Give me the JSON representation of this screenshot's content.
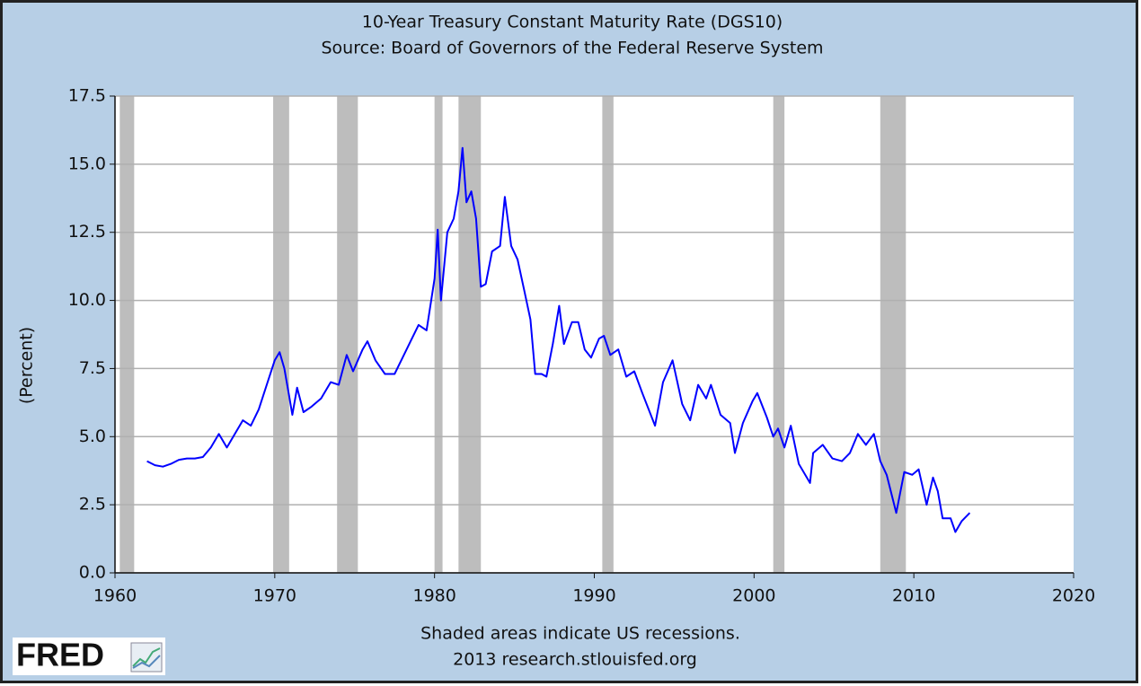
{
  "chart_data": {
    "type": "line",
    "title": "10-Year Treasury Constant Maturity Rate (DGS10)",
    "subtitle": "Source: Board of Governors of the Federal Reserve System",
    "y_label": "(Percent)",
    "note": "Shaded areas indicate US recessions.",
    "credit": "2013 research.stlouisfed.org",
    "logo": "FRED",
    "xlim": [
      1960,
      2020
    ],
    "xticks": [
      1960,
      1970,
      1980,
      1990,
      2000,
      2010,
      2020
    ],
    "ylim": [
      0,
      17.5
    ],
    "yticks": [
      {
        "value": 0,
        "label": "0.0"
      },
      2.5,
      {
        "value": 5,
        "label": "5.0"
      },
      7.5,
      {
        "value": 10,
        "label": "10.0"
      },
      12.5,
      {
        "value": 15,
        "label": "15.0"
      },
      17.5
    ],
    "grid": true,
    "recession_color": "#bdbdbd",
    "recessions": [
      [
        1960.3,
        1961.2
      ],
      [
        1969.9,
        1970.9
      ],
      [
        1973.9,
        1975.2
      ],
      [
        1980.0,
        1980.5
      ],
      [
        1981.5,
        1982.9
      ],
      [
        1990.5,
        1991.2
      ],
      [
        2001.2,
        2001.9
      ],
      [
        2007.9,
        2009.5
      ]
    ],
    "x": [
      1962.0,
      1962.5,
      1963.0,
      1963.5,
      1964.0,
      1964.5,
      1965.0,
      1965.5,
      1966.0,
      1966.5,
      1967.0,
      1967.5,
      1968.0,
      1968.5,
      1969.0,
      1969.5,
      1970.0,
      1970.3,
      1970.6,
      1970.9,
      1971.1,
      1971.4,
      1971.8,
      1972.3,
      1972.9,
      1973.5,
      1974.0,
      1974.5,
      1974.9,
      1975.5,
      1975.8,
      1976.3,
      1976.9,
      1977.5,
      1978.0,
      1978.5,
      1979.0,
      1979.5,
      1980.0,
      1980.2,
      1980.4,
      1980.8,
      1981.2,
      1981.5,
      1981.75,
      1982.0,
      1982.3,
      1982.6,
      1982.9,
      1983.2,
      1983.6,
      1984.1,
      1984.4,
      1984.8,
      1985.2,
      1985.6,
      1986.0,
      1986.3,
      1986.7,
      1987.0,
      1987.4,
      1987.8,
      1988.1,
      1988.6,
      1989.0,
      1989.4,
      1989.8,
      1990.3,
      1990.6,
      1991.0,
      1991.5,
      1992.0,
      1992.5,
      1993.0,
      1993.8,
      1994.3,
      1994.9,
      1995.5,
      1996.0,
      1996.5,
      1997.0,
      1997.3,
      1997.9,
      1998.5,
      1998.8,
      1999.3,
      1999.9,
      2000.2,
      2000.8,
      2001.2,
      2001.5,
      2001.9,
      2002.3,
      2002.8,
      2003.5,
      2003.7,
      2004.3,
      2004.9,
      2005.5,
      2006.0,
      2006.5,
      2007.0,
      2007.5,
      2007.9,
      2008.3,
      2008.9,
      2009.4,
      2009.9,
      2010.3,
      2010.8,
      2011.2,
      2011.5,
      2011.8,
      2012.3,
      2012.6,
      2013.0,
      2013.5
    ],
    "series": [
      {
        "name": "DGS10",
        "color": "#0000ff",
        "values": [
          4.1,
          3.95,
          3.9,
          4.0,
          4.15,
          4.2,
          4.2,
          4.25,
          4.6,
          5.1,
          4.6,
          5.1,
          5.6,
          5.4,
          6.0,
          6.9,
          7.8,
          8.1,
          7.5,
          6.5,
          5.8,
          6.8,
          5.9,
          6.1,
          6.4,
          7.0,
          6.9,
          8.0,
          7.4,
          8.2,
          8.5,
          7.8,
          7.3,
          7.3,
          7.9,
          8.5,
          9.1,
          8.9,
          10.8,
          12.6,
          10.0,
          12.5,
          13.0,
          14.0,
          15.6,
          13.6,
          14.0,
          13.0,
          10.5,
          10.6,
          11.8,
          12.0,
          13.8,
          12.0,
          11.5,
          10.4,
          9.3,
          7.3,
          7.3,
          7.2,
          8.4,
          9.8,
          8.4,
          9.2,
          9.2,
          8.2,
          7.9,
          8.6,
          8.7,
          8.0,
          8.2,
          7.2,
          7.4,
          6.6,
          5.4,
          7.0,
          7.8,
          6.2,
          5.6,
          6.9,
          6.4,
          6.9,
          5.8,
          5.5,
          4.4,
          5.5,
          6.3,
          6.6,
          5.7,
          5.0,
          5.3,
          4.6,
          5.4,
          4.0,
          3.3,
          4.4,
          4.7,
          4.2,
          4.1,
          4.4,
          5.1,
          4.7,
          5.1,
          4.1,
          3.6,
          2.2,
          3.7,
          3.6,
          3.8,
          2.5,
          3.5,
          3.0,
          2.0,
          2.0,
          1.5,
          1.9,
          2.2
        ]
      }
    ]
  }
}
